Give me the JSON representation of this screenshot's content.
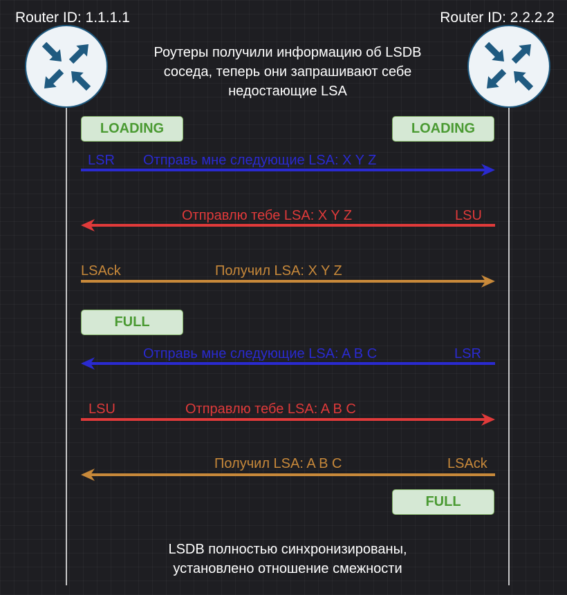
{
  "routers": [
    {
      "id_label": "Router ID: 1.1.1.1"
    },
    {
      "id_label": "Router ID: 2.2.2.2"
    }
  ],
  "notes": {
    "top": [
      "Роутеры получили информацию об LSDB",
      "соседа, теперь они запрашивают себе",
      "недостающие LSA"
    ],
    "bottom": [
      "LSDB полностью синхронизированы,",
      "установлено отношение смежности"
    ]
  },
  "states": {
    "left_loading": "LOADING",
    "right_loading": "LOADING",
    "left_full": "FULL",
    "right_full": "FULL"
  },
  "messages": [
    {
      "direction": "right",
      "color": "#2a2ad0",
      "type": "LSR",
      "text": "Отправь мне следующие LSA: X Y Z"
    },
    {
      "direction": "left",
      "color": "#e03a3a",
      "type": "LSU",
      "text": "Отправлю тебе LSA: X Y Z"
    },
    {
      "direction": "right",
      "color": "#c8893a",
      "type": "LSAck",
      "text": "Получил LSA: X Y Z"
    },
    {
      "direction": "left",
      "color": "#2a2ad0",
      "type": "LSR",
      "text": "Отправь мне следующие LSA: A B C"
    },
    {
      "direction": "right",
      "color": "#e03a3a",
      "type": "LSU",
      "text": "Отправлю тебе LSA: A B C"
    },
    {
      "direction": "left",
      "color": "#c8893a",
      "type": "LSAck",
      "text": "Получил LSA: A B C"
    }
  ],
  "colors": {
    "router_fill": "#eef3f7",
    "router_arrows": "#1f5a80",
    "state_fill": "#d5e8d4",
    "state_text": "#4a9a32"
  },
  "icons": {
    "router": "router-icon"
  }
}
